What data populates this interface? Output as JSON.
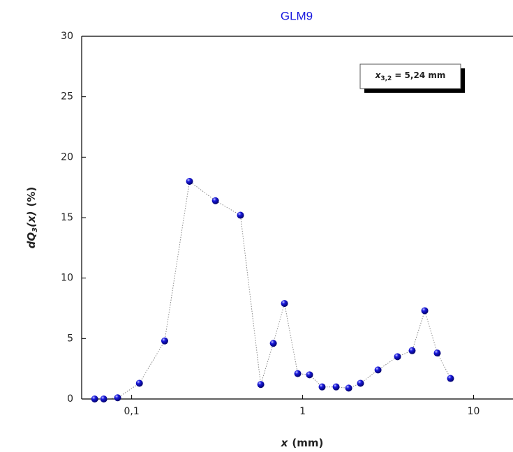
{
  "chart_data": {
    "type": "scatter",
    "title": "GLM9",
    "x": [
      0.0608,
      0.0687,
      0.0828,
      0.111,
      0.156,
      0.218,
      0.309,
      0.433,
      0.569,
      0.674,
      0.783,
      0.936,
      1.098,
      1.3,
      1.57,
      1.86,
      2.18,
      2.76,
      3.59,
      4.37,
      5.18,
      6.13,
      7.33
    ],
    "values": [
      0,
      0,
      0.1,
      1.3,
      4.8,
      18.0,
      16.4,
      15.2,
      1.2,
      4.6,
      7.9,
      2.1,
      2.0,
      1.0,
      1.0,
      0.9,
      1.3,
      2.4,
      3.5,
      4.0,
      7.3,
      3.8,
      1.7
    ],
    "color": "#1a1adf",
    "xlim": [
      0.051,
      17
    ],
    "xscale": "log",
    "xticks": [
      {
        "value": 0.1,
        "label": "0,1"
      },
      1,
      10
    ],
    "ylim": [
      0,
      30
    ],
    "yticks": [
      0,
      5,
      10,
      15,
      20,
      25,
      30
    ],
    "xlabel": {
      "var": "x",
      "unit": "(mm)"
    },
    "ylabel": {
      "var": "dQ",
      "sub": "3",
      "arg": "(x)",
      "unit": "(%)"
    },
    "annotation": {
      "var": "x",
      "sub": "3,2",
      "text": "= 5,24 mm"
    }
  }
}
